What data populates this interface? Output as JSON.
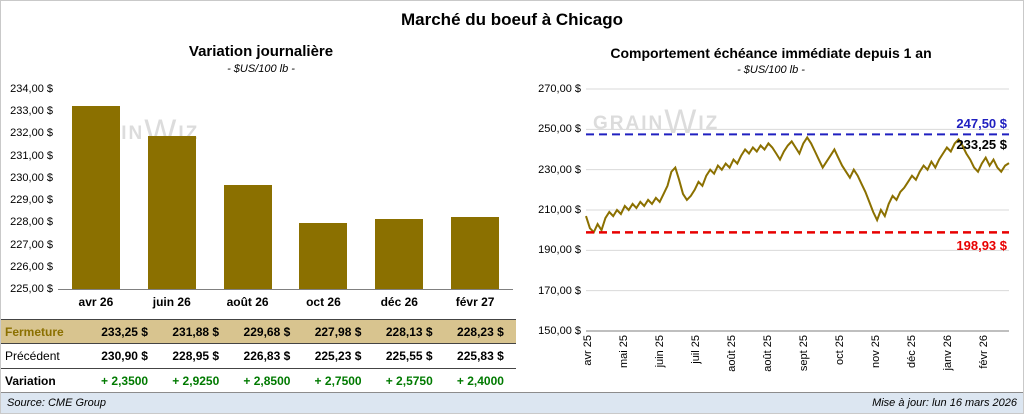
{
  "page": {
    "title": "Marché du boeuf à Chicago",
    "source": "Source: CME Group",
    "updated": "Mise à jour: lun 16 mars 2026",
    "watermark": {
      "pre": "GRAIN",
      "mid": "W",
      "post": "IZ"
    }
  },
  "colors": {
    "series_olive": "#8B7000",
    "high_blue": "#2020C0",
    "low_red": "#E80000",
    "variation_green": "#007A00",
    "fermeture_row_bg": "#D8C48F",
    "footer_band_bg": "#DCE6F1",
    "watermark_gray": "#DCDCDC"
  },
  "chart_data": [
    {
      "type": "bar",
      "title": "Variation journalière",
      "subtitle": "- $US/100 lb -",
      "categories": [
        "avr 26",
        "juin 26",
        "août 26",
        "oct 26",
        "déc 26",
        "févr 27"
      ],
      "values": [
        233.25,
        231.88,
        229.68,
        227.98,
        228.13,
        228.23
      ],
      "ylim": [
        225,
        234
      ],
      "ytick_step": 1,
      "ytick_labels": [
        "225,00 $",
        "226,00 $",
        "227,00 $",
        "228,00 $",
        "229,00 $",
        "230,00 $",
        "231,00 $",
        "232,00 $",
        "233,00 $",
        "234,00 $"
      ],
      "grid": false,
      "bar_color": "#8B7000"
    },
    {
      "type": "line",
      "title": "Comportement échéance immédiate depuis 1 an",
      "subtitle": "- $US/100 lb -",
      "x_labels": [
        "avr 25",
        "mai 25",
        "juin 25",
        "juil 25",
        "août 25",
        "août 25",
        "sept 25",
        "oct 25",
        "nov 25",
        "déc 25",
        "janv 26",
        "févr 26"
      ],
      "values": [
        207,
        201,
        199,
        203,
        200,
        206,
        209,
        207,
        210,
        208,
        212,
        210,
        213,
        211,
        214,
        212,
        215,
        213,
        216,
        214,
        218,
        222,
        229,
        231,
        225,
        218,
        215,
        217,
        220,
        224,
        222,
        227,
        230,
        228,
        232,
        230,
        233,
        231,
        235,
        233,
        237,
        240,
        238,
        241,
        239,
        242,
        240,
        243,
        241,
        238,
        235,
        239,
        242,
        244,
        241,
        238,
        243,
        246,
        243,
        239,
        235,
        231,
        234,
        237,
        240,
        236,
        232,
        229,
        226,
        230,
        227,
        223,
        219,
        214,
        209,
        205,
        210,
        207,
        213,
        217,
        215,
        219,
        221,
        224,
        227,
        225,
        229,
        232,
        230,
        234,
        231,
        235,
        238,
        241,
        239,
        243,
        245,
        242,
        238,
        235,
        231,
        229,
        233,
        236,
        232,
        235,
        231,
        229,
        232,
        233.25
      ],
      "ylim": [
        150,
        270
      ],
      "ytick_step": 20,
      "ytick_labels": [
        "150,00 $",
        "170,00 $",
        "190,00 $",
        "210,00 $",
        "230,00 $",
        "250,00 $",
        "270,00 $"
      ],
      "grid": true,
      "line_color": "#8B7000",
      "high_line": {
        "value": 247.5,
        "label": "247,50 $"
      },
      "low_line": {
        "value": 198.93,
        "label": "198,93 $"
      },
      "last_point_label": "233,25 $"
    }
  ],
  "table": {
    "rows": [
      {
        "label": "Fermeture",
        "values": [
          "233,25 $",
          "231,88 $",
          "229,68 $",
          "227,98 $",
          "228,13 $",
          "228,23 $"
        ]
      },
      {
        "label": "Précédent",
        "values": [
          "230,90 $",
          "228,95 $",
          "226,83 $",
          "225,23 $",
          "225,55 $",
          "225,83 $"
        ]
      },
      {
        "label": "Variation",
        "values": [
          "+ 2,3500",
          "+ 2,9250",
          "+ 2,8500",
          "+ 2,7500",
          "+ 2,5750",
          "+ 2,4000"
        ]
      }
    ]
  }
}
